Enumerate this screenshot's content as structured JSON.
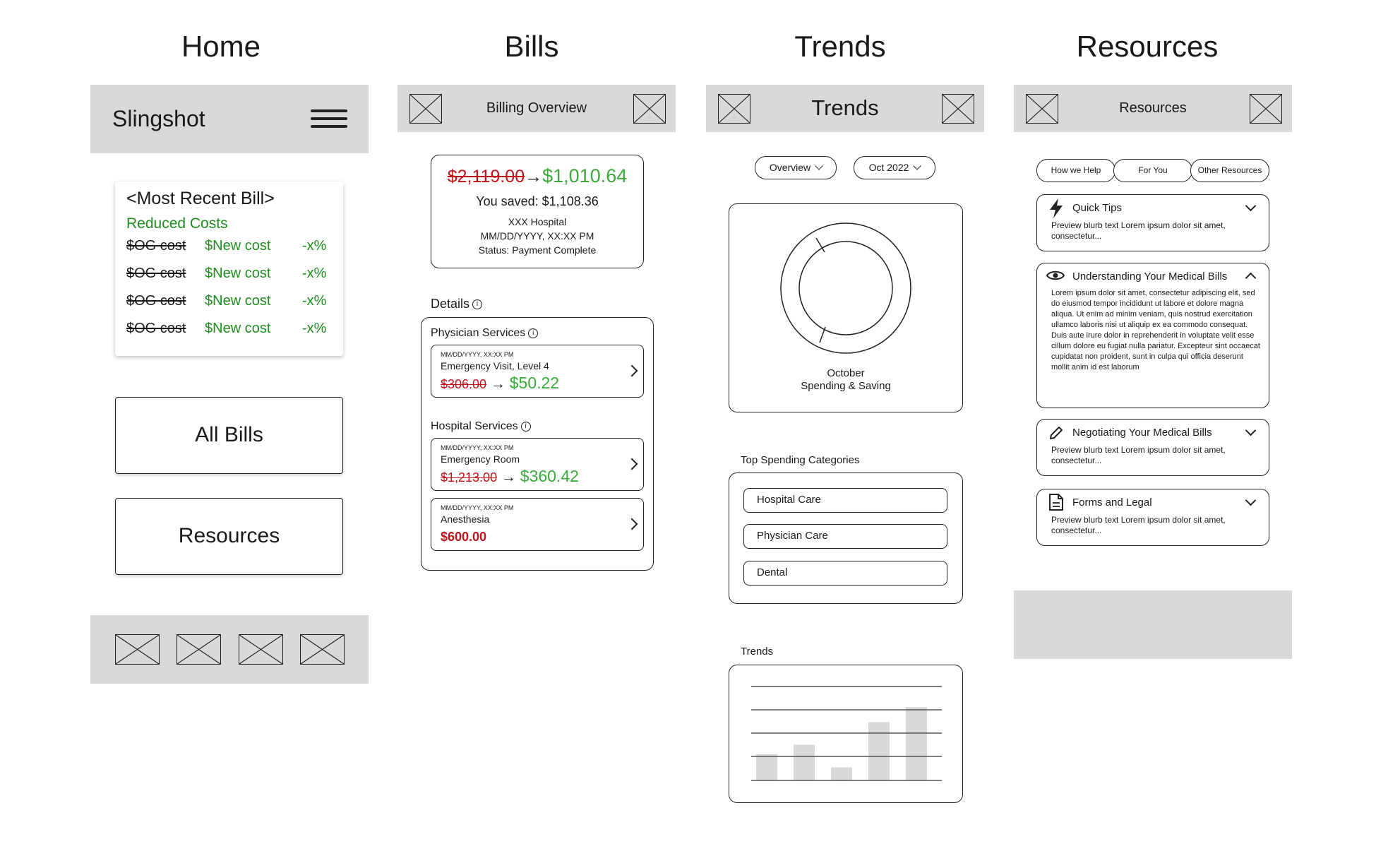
{
  "columns": {
    "home": "Home",
    "bills": "Bills",
    "trends": "Trends",
    "resources": "Resources"
  },
  "home": {
    "brand": "Slingshot",
    "recent_bill_title": "<Most Recent Bill>",
    "reduced_label": "Reduced Costs",
    "rows": [
      {
        "old": "$OG cost",
        "new": "$New cost",
        "pct": "-x%"
      },
      {
        "old": "$OG cost",
        "new": "$New cost",
        "pct": "-x%"
      },
      {
        "old": "$OG cost",
        "new": "$New cost",
        "pct": "-x%"
      },
      {
        "old": "$OG cost",
        "new": "$New cost",
        "pct": "-x%"
      }
    ],
    "all_bills_label": "All Bills",
    "resources_label": "Resources"
  },
  "bills": {
    "header_title": "Billing Overview",
    "summary": {
      "old": "$2,119.00",
      "new": "$1,010.64",
      "saved": "You saved: $1,108.36",
      "hospital": "XXX Hospital",
      "datetime": "MM/DD/YYYY, XX:XX PM",
      "status": "Status: Payment Complete"
    },
    "details_label": "Details",
    "physician_label": "Physician Services",
    "hospital_label": "Hospital Services",
    "items": [
      {
        "date": "MM/DD/YYYY, XX:XX PM",
        "name": "Emergency Visit, Level 4",
        "old": "$306.00",
        "new": "$50.22"
      },
      {
        "date": "MM/DD/YYYY, XX:XX PM",
        "name": "Emergency Room",
        "old": "$1,213.00",
        "new": "$360.42"
      },
      {
        "date": "MM/DD/YYYY, XX:XX PM",
        "name": "Anesthesia",
        "price": "$600.00"
      }
    ]
  },
  "trends": {
    "header_title": "Trends",
    "filter_view": "Overview",
    "filter_month": "Oct 2022",
    "donut_line1": "October",
    "donut_line2": "Spending & Saving",
    "top_label": "Top Spending Categories",
    "categories": [
      "Hospital Care",
      "Physician Care",
      "Dental"
    ],
    "trends_label": "Trends",
    "bars": [
      0.28,
      0.38,
      0.14,
      0.62,
      0.78
    ]
  },
  "resources": {
    "header_title": "Resources",
    "tabs": [
      "How we Help",
      "For You",
      "Other Resources"
    ],
    "sections": [
      {
        "title": "Quick Tips",
        "icon": "lightning-icon",
        "text": "Preview blurb text Lorem ipsum dolor sit amet, consectetur..."
      },
      {
        "title": "Understanding Your Medical Bills",
        "icon": "eye-icon",
        "text": "Lorem ipsum dolor sit amet, consectetur adipiscing elit, sed do eiusmod tempor incididunt ut labore et dolore magna aliqua. Ut enim ad minim veniam, quis nostrud exercitation ullamco laboris nisi ut aliquip ex ea commodo consequat. Duis aute irure dolor in reprehenderit in voluptate velit esse cillum dolore eu fugiat nulla pariatur. Excepteur sint occaecat cupidatat non proident, sunt in culpa qui officia deserunt mollit anim id est laborum"
      },
      {
        "title": "Negotiating Your Medical Bills",
        "icon": "pencil-icon",
        "text": "Preview blurb text Lorem ipsum dolor sit amet, consectetur..."
      },
      {
        "title": "Forms and Legal",
        "icon": "document-icon",
        "text": "Preview blurb text Lorem ipsum dolor sit amet, consectetur..."
      }
    ]
  }
}
